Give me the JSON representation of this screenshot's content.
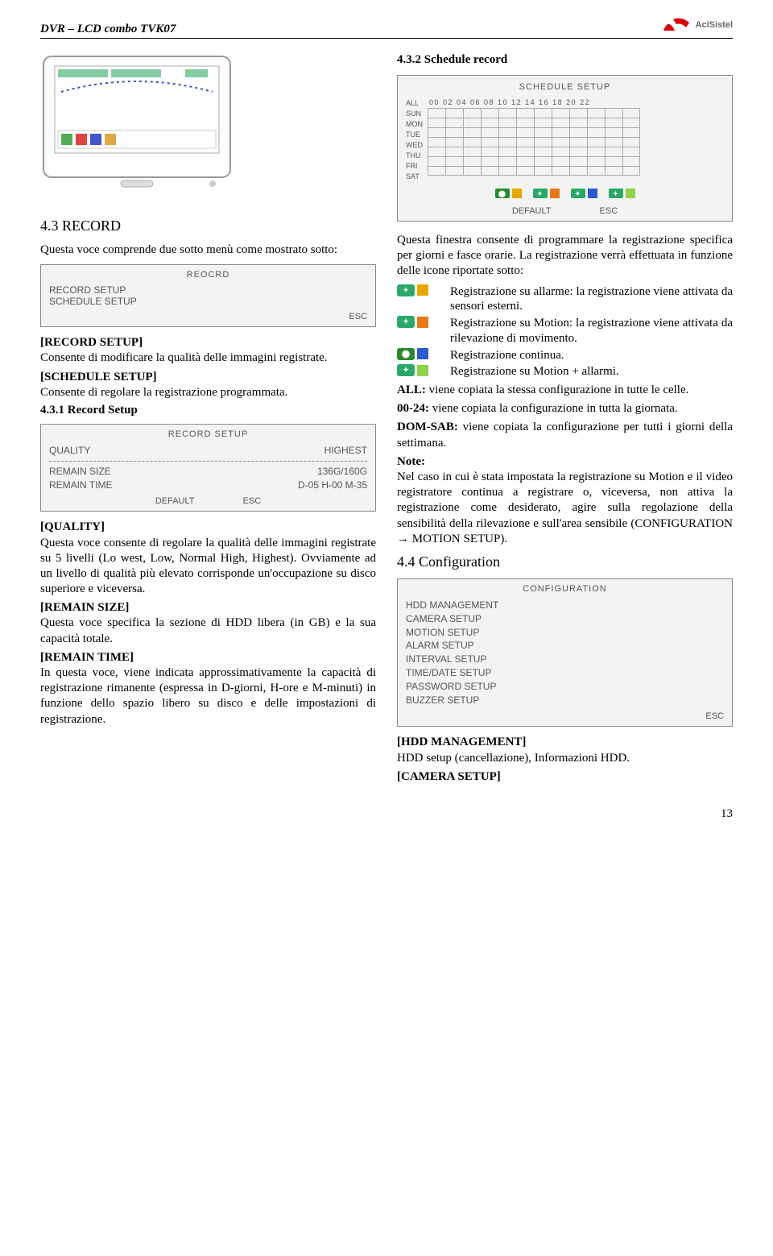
{
  "header": {
    "product": "DVR – LCD  combo TVK07",
    "brand": "AciSistel"
  },
  "logo": {
    "red": "#d9000d",
    "grey": "#6b6b6b"
  },
  "left": {
    "section_a_title": "4.3 RECORD",
    "intro": "Questa voce comprende due sotto menù come mostrato sotto:",
    "record_box": {
      "title": "REOCRD",
      "item1": "RECORD SETUP",
      "item2": "SCHEDULE SETUP",
      "esc": "ESC"
    },
    "rec_setup_label": "[RECORD SETUP]",
    "rec_setup_text": "Consente di modificare la qualità delle immagini registrate.",
    "sched_setup_label": "[SCHEDULE SETUP]",
    "sched_setup_text": "Consente di regolare la registrazione programmata.",
    "rec_setup_title": "4.3.1 Record Setup",
    "rec_setup_box": {
      "title": "RECORD SETUP",
      "quality_label": "QUALITY",
      "quality_value": "HIGHEST",
      "remain_size_label": "REMAIN SIZE",
      "remain_size_value": "136G/160G",
      "remain_time_label": "REMAIN TIME",
      "remain_time_value": "D-05 H-00 M-35",
      "default": "DEFAULT",
      "esc": "ESC"
    },
    "quality_label": "[QUALITY]",
    "quality_text": "Questa voce consente di regolare la qualità delle immagini registrate su 5 livelli (Lo west, Low, Normal High, Highest). Ovviamente ad un livello di qualità più elevato corrisponde un'occupazione su disco superiore e viceversa.",
    "remain_size_label": "[REMAIN SIZE]",
    "remain_size_text": "Questa voce specifica la sezione di HDD libera (in GB) e la sua capacità totale.",
    "remain_time_label": "[REMAIN TIME]",
    "remain_time_text": "In questa voce, viene indicata approssimativamente la capacità di registrazione rimanente (espressa in D-giorni, H-ore e M-minuti) in funzione dello spazio libero su disco e delle impostazioni di registrazione."
  },
  "right": {
    "section_b_title": "4.3.2 Schedule record",
    "schedule_box": {
      "title": "SCHEDULE SETUP",
      "days": [
        "ALL",
        "SUN",
        "MON",
        "TUE",
        "WED",
        "THU",
        "FRI",
        "SAT"
      ],
      "hours": "00 02 04 06 08 10 12 14 16 18 20 22",
      "default": "DEFAULT",
      "esc": "ESC"
    },
    "legend": {
      "rec_bg": "#2a8a2a",
      "alarm_bg": "#2aa86a",
      "motion_bg": "#2aa86a",
      "yellow": "#e6a800",
      "orange": "#e67a1a",
      "blue": "#2a5ad0",
      "green_sq": "#8ed24a"
    },
    "intro": "Questa finestra consente di programmare la registrazione specifica per giorni e fasce orarie. La registrazione verrà effettuata in funzione delle icone riportate sotto:",
    "icons": {
      "alarm_text": "Registrazione su allarme: la registrazione viene attivata da sensori esterni.",
      "motion_text": "Registrazione su Motion: la registrazione viene attivata da rilevazione di movimento.",
      "cont_text": "Registrazione continua.",
      "both_text": "Registrazione su Motion + allarmi."
    },
    "all_label": "ALL:",
    "all_text": " viene copiata la stessa configurazione in tutte le celle.",
    "h0024_label": "00-24:",
    "h0024_text": " viene copiata la configurazione in tutta la giornata.",
    "domsab_label": "DOM-SAB:",
    "domsab_text": " viene copiata la configurazione per tutti i giorni della settimana.",
    "note_label": "Note:",
    "note_text": "Nel caso in cui è stata impostata la registrazione su Motion e il video registratore continua a registrare o, viceversa, non attiva la registrazione come desiderato, agire sulla regolazione della sensibilità della rilevazione e sull'area sensibile (CONFIGURATION → MOTION SETUP).",
    "config_title": "4.4 Configuration",
    "config_box": {
      "title": "CONFIGURATION",
      "items": [
        "HDD MANAGEMENT",
        "CAMERA SETUP",
        "MOTION SETUP",
        "ALARM SETUP",
        "INTERVAL SETUP",
        "TIME/DATE SETUP",
        "PASSWORD SETUP",
        "BUZZER SETUP"
      ],
      "esc": "ESC"
    },
    "hdd_label": "[HDD MANAGEMENT]",
    "hdd_text": "HDD setup (cancellazione), Informazioni HDD.",
    "camera_label": "[CAMERA SETUP]"
  },
  "page_number": "13"
}
